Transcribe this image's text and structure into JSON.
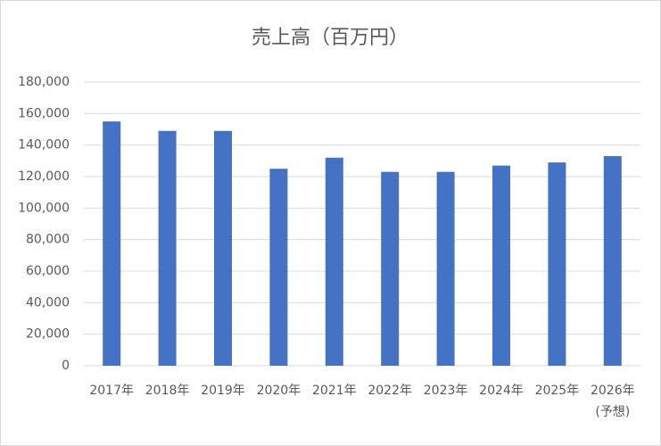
{
  "chart_data": {
    "type": "bar",
    "title": "売上高（百万円）",
    "categories": [
      "2017年",
      "2018年",
      "2019年",
      "2020年",
      "2021年",
      "2022年",
      "2023年",
      "2024年",
      "2025年",
      "2026年\n(予想)"
    ],
    "values": [
      155000,
      149000,
      149000,
      125000,
      132000,
      123000,
      123000,
      127000,
      129000,
      133000
    ],
    "color": "#4472c4",
    "ylim": [
      0,
      180000
    ],
    "yticks": [
      0,
      {
        "value": 20000,
        "label": "20,000"
      },
      {
        "value": 40000,
        "label": "40,000"
      },
      {
        "value": 60000,
        "label": "60,000"
      },
      {
        "value": 80000,
        "label": "80,000"
      },
      {
        "value": 100000,
        "label": "100,000"
      },
      {
        "value": 120000,
        "label": "120,000"
      },
      {
        "value": 140000,
        "label": "140,000"
      },
      {
        "value": 160000,
        "label": "160,000"
      },
      {
        "value": 180000,
        "label": "180,000"
      }
    ],
    "grid": true
  }
}
